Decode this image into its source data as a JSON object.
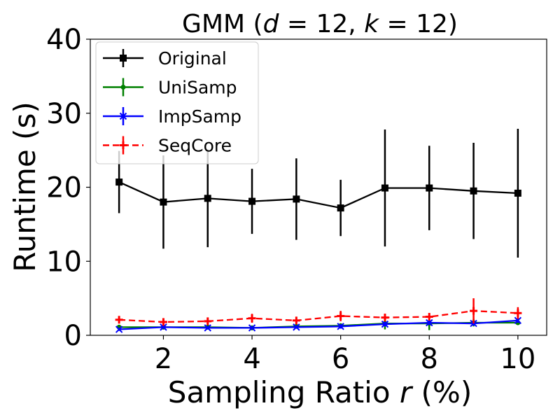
{
  "chart_data": {
    "type": "line",
    "title": "GMM (d = 12, k = 12)",
    "title_parts": {
      "prefix": "GMM (",
      "d": "d",
      "eq1": " = 12, ",
      "k": "k",
      "eq2": " = 12)"
    },
    "xlabel": "Sampling Ratio r (%)",
    "xlabel_parts": {
      "prefix": "Sampling Ratio ",
      "var": "r",
      "suffix": " (%)"
    },
    "ylabel": "Runtime (s)",
    "xlim": [
      0.35,
      10.65
    ],
    "ylim": [
      0,
      40
    ],
    "xticks": [
      2,
      4,
      6,
      8,
      10
    ],
    "xtick_labels": [
      "2",
      "4",
      "6",
      "8",
      "10"
    ],
    "yticks": [
      0,
      10,
      20,
      30,
      40
    ],
    "ytick_labels": [
      "0",
      "10",
      "20",
      "30",
      "40"
    ],
    "grid": false,
    "legend_position": "top-left",
    "x": [
      1,
      2,
      3,
      4,
      5,
      6,
      7,
      8,
      9,
      10
    ],
    "series": [
      {
        "name": "Original",
        "color": "#000000",
        "linestyle": "solid",
        "marker": "square",
        "values": [
          20.7,
          18.0,
          18.5,
          18.1,
          18.4,
          17.2,
          19.9,
          19.9,
          19.5,
          19.2
        ],
        "errors": [
          4.2,
          6.3,
          6.6,
          4.4,
          5.5,
          3.8,
          7.9,
          5.7,
          6.5,
          8.7
        ]
      },
      {
        "name": "UniSamp",
        "color": "#008000",
        "linestyle": "solid",
        "marker": "circle",
        "values": [
          1.1,
          1.1,
          1.1,
          1.0,
          1.2,
          1.3,
          1.6,
          1.6,
          1.7,
          1.7
        ],
        "errors": [
          0.3,
          0.3,
          0.3,
          0.3,
          0.3,
          0.3,
          0.8,
          0.9,
          0.5,
          0.3
        ]
      },
      {
        "name": "ImpSamp",
        "color": "#0000ff",
        "linestyle": "solid",
        "marker": "x",
        "values": [
          0.8,
          1.1,
          1.0,
          1.0,
          1.1,
          1.2,
          1.5,
          1.7,
          1.6,
          2.0
        ],
        "errors": [
          0.2,
          0.2,
          0.2,
          0.2,
          0.2,
          0.3,
          0.3,
          0.3,
          0.3,
          0.3
        ]
      },
      {
        "name": "SeqCore",
        "color": "#ff0000",
        "linestyle": "dashed",
        "marker": "plus",
        "values": [
          2.1,
          1.8,
          1.9,
          2.3,
          2.0,
          2.6,
          2.4,
          2.5,
          3.3,
          3.0
        ],
        "errors": [
          0.3,
          0.3,
          0.4,
          0.6,
          0.3,
          0.7,
          0.5,
          0.5,
          1.7,
          0.8
        ]
      }
    ]
  }
}
